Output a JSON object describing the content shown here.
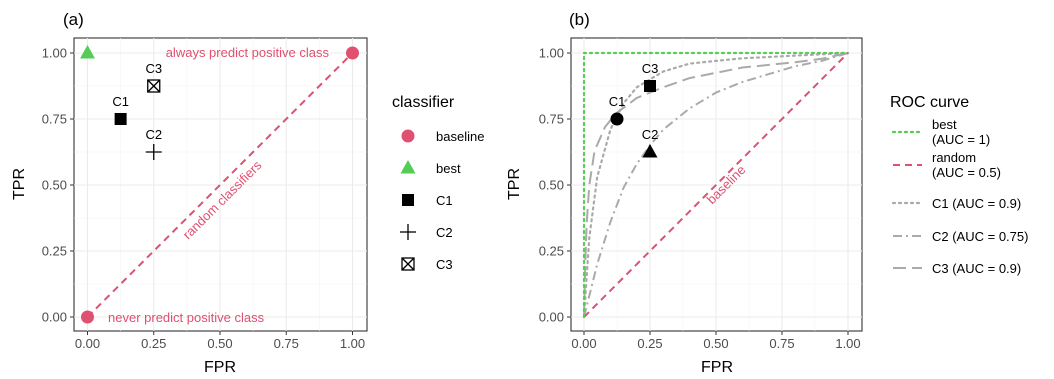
{
  "colors": {
    "baseline": "#e05070",
    "best": "#55cc55",
    "classifier": "#000000",
    "curve_gray": "#aaaaaa",
    "grid": "#ebebeb"
  },
  "chart_data": [
    {
      "type": "scatter",
      "panel_label": "(a)",
      "xlabel": "FPR",
      "ylabel": "TPR",
      "xlim": [
        0,
        1
      ],
      "ylim": [
        0,
        1
      ],
      "ticks": [
        "0.00",
        "0.25",
        "0.50",
        "0.75",
        "1.00"
      ],
      "grid": true,
      "legend": {
        "title": "classifier",
        "position": "right",
        "entries": [
          "baseline",
          "best",
          "C1",
          "C2",
          "C3"
        ]
      },
      "points": [
        {
          "series": "baseline",
          "x": 0.0,
          "y": 0.0,
          "shape": "circle"
        },
        {
          "series": "baseline",
          "x": 1.0,
          "y": 1.0,
          "shape": "circle"
        },
        {
          "series": "best",
          "x": 0.0,
          "y": 1.0,
          "shape": "triangle"
        },
        {
          "series": "C1",
          "x": 0.125,
          "y": 0.75,
          "shape": "square",
          "label": "C1"
        },
        {
          "series": "C2",
          "x": 0.25,
          "y": 0.625,
          "shape": "plus",
          "label": "C2"
        },
        {
          "series": "C3",
          "x": 0.25,
          "y": 0.875,
          "shape": "boxcross",
          "label": "C3"
        }
      ],
      "reference_line": {
        "x": [
          0,
          1
        ],
        "y": [
          0,
          1
        ],
        "label": "random classifiers"
      },
      "annotations": [
        "always predict positive class",
        "never predict positive class"
      ]
    },
    {
      "type": "line",
      "panel_label": "(b)",
      "xlabel": "FPR",
      "ylabel": "TPR",
      "xlim": [
        0,
        1
      ],
      "ylim": [
        0,
        1
      ],
      "ticks": [
        "0.00",
        "0.25",
        "0.50",
        "0.75",
        "1.00"
      ],
      "grid": true,
      "legend": {
        "title": "ROC curve",
        "position": "right",
        "entries": [
          {
            "lines": [
              "best",
              "(AUC = 1)"
            ]
          },
          {
            "lines": [
              "random",
              "(AUC = 0.5)"
            ]
          },
          {
            "lines": [
              "C1 (AUC = 0.9)"
            ]
          },
          {
            "lines": [
              "C2 (AUC = 0.75)"
            ]
          },
          {
            "lines": [
              "C3 (AUC = 0.9)"
            ]
          }
        ]
      },
      "series": [
        {
          "name": "best (AUC = 1)",
          "style": "dotted",
          "x": [
            0,
            0,
            1
          ],
          "y": [
            0,
            1,
            1
          ]
        },
        {
          "name": "random (AUC = 0.5)",
          "style": "dashed",
          "x": [
            0,
            1
          ],
          "y": [
            0,
            1
          ]
        },
        {
          "name": "C1 (AUC = 0.9)",
          "style": "dotted",
          "x": [
            0,
            0.02,
            0.05,
            0.1,
            0.15,
            0.2,
            0.3,
            0.4,
            0.5,
            0.6,
            0.7,
            0.8,
            0.9,
            1.0
          ],
          "y": [
            0,
            0.3,
            0.53,
            0.71,
            0.81,
            0.87,
            0.93,
            0.96,
            0.97,
            0.98,
            0.985,
            0.99,
            0.995,
            1.0
          ]
        },
        {
          "name": "C2 (AUC = 0.75)",
          "style": "dotdash",
          "x": [
            0,
            0.05,
            0.1,
            0.15,
            0.2,
            0.25,
            0.3,
            0.4,
            0.5,
            0.6,
            0.7,
            0.8,
            0.9,
            1.0
          ],
          "y": [
            0,
            0.2,
            0.36,
            0.49,
            0.58,
            0.65,
            0.71,
            0.79,
            0.85,
            0.89,
            0.92,
            0.95,
            0.97,
            1.0
          ]
        },
        {
          "name": "C3 (AUC = 0.9)",
          "style": "longdash",
          "x": [
            0,
            0.005,
            0.01,
            0.02,
            0.04,
            0.08,
            0.12,
            0.2,
            0.3,
            0.4,
            0.5,
            0.6,
            0.7,
            0.8,
            0.9,
            1.0
          ],
          "y": [
            0,
            0.2,
            0.35,
            0.5,
            0.63,
            0.72,
            0.77,
            0.83,
            0.87,
            0.905,
            0.925,
            0.945,
            0.955,
            0.965,
            0.978,
            1.0
          ]
        }
      ],
      "points": [
        {
          "label": "C1",
          "x": 0.125,
          "y": 0.75,
          "shape": "circle"
        },
        {
          "label": "C2",
          "x": 0.25,
          "y": 0.625,
          "shape": "triangle"
        },
        {
          "label": "C3",
          "x": 0.25,
          "y": 0.875,
          "shape": "square"
        }
      ],
      "annotations": [
        "baseline"
      ]
    }
  ]
}
